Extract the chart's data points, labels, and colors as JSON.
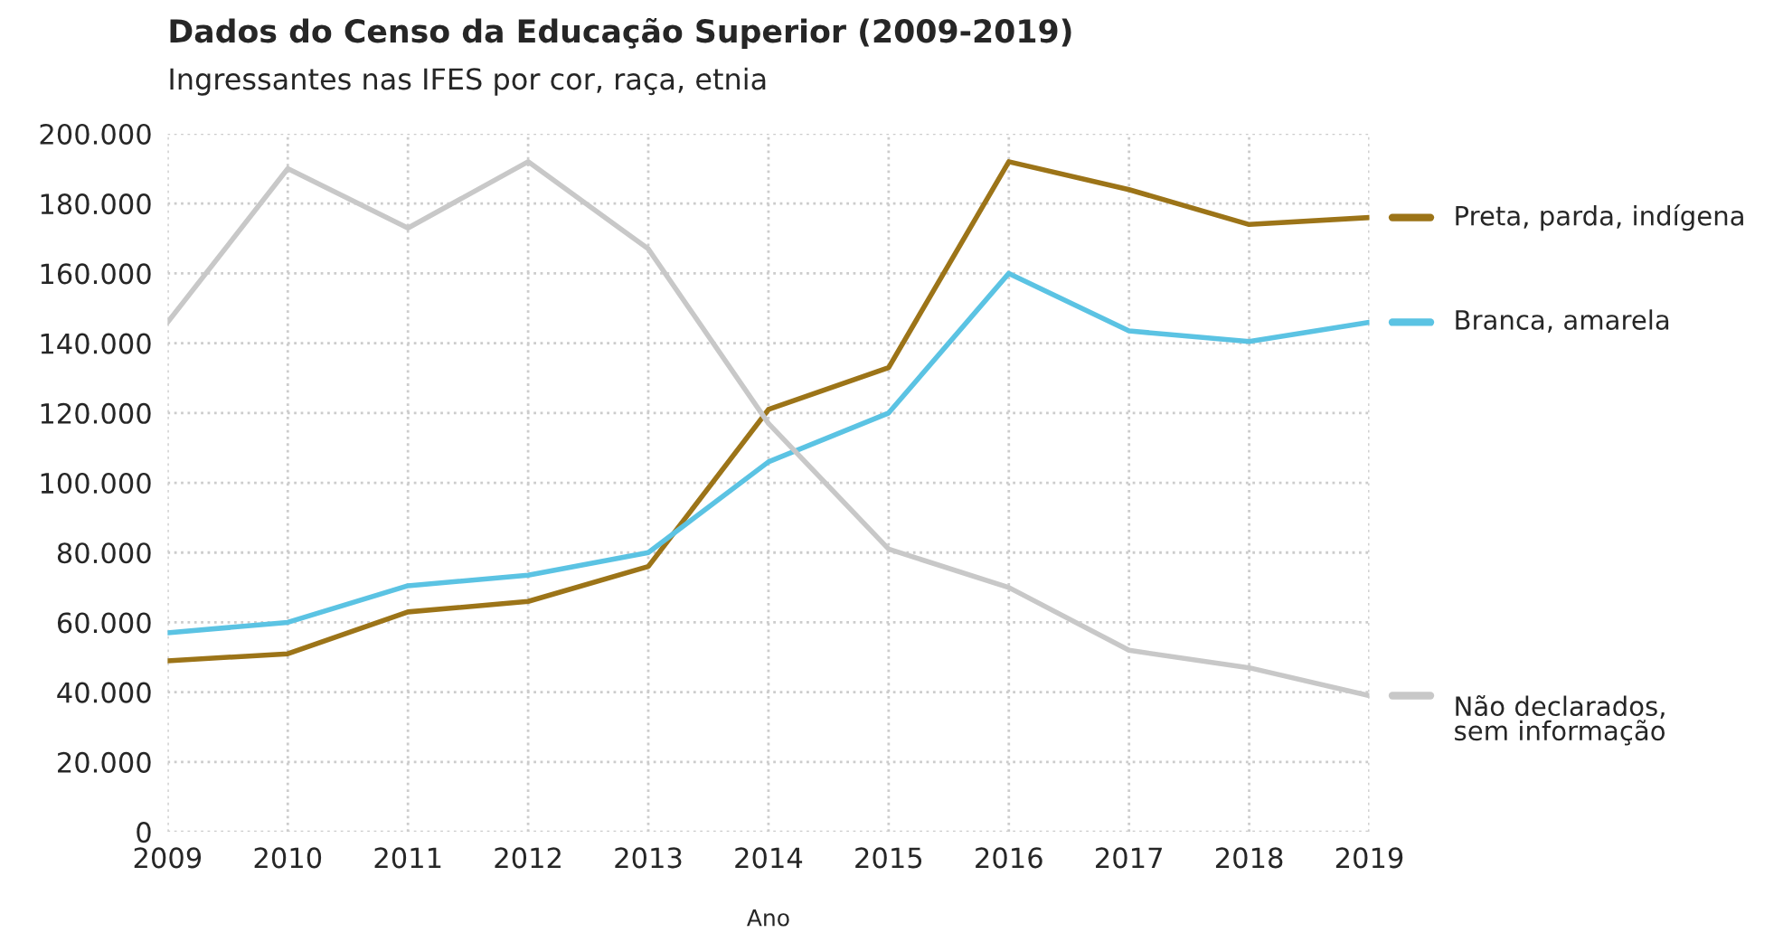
{
  "chart_data": {
    "type": "line",
    "title": "Dados do Censo da Educação Superior (2009-2019)",
    "subtitle": "Ingressantes nas IFES por cor, raça, etnia",
    "xlabel": "Ano",
    "x": [
      2009,
      2010,
      2011,
      2012,
      2013,
      2014,
      2015,
      2016,
      2017,
      2018,
      2019
    ],
    "series": [
      {
        "name": "Preta, parda, indígena",
        "color": "#9c7418",
        "values": [
          49000,
          51000,
          63000,
          66000,
          76000,
          121000,
          133000,
          192000,
          184000,
          174000,
          176000
        ]
      },
      {
        "name": "Branca, amarela",
        "color": "#5bc3e3",
        "values": [
          57000,
          60000,
          70500,
          73500,
          80000,
          106000,
          120000,
          160000,
          143500,
          140500,
          146000
        ]
      },
      {
        "name": "Não declarados,\nsem informação",
        "color": "#c8c8c8",
        "values": [
          146000,
          190000,
          173000,
          192000,
          167000,
          117000,
          81000,
          70000,
          52000,
          47000,
          39000
        ]
      }
    ],
    "xlim": [
      2009,
      2019
    ],
    "xticks": [
      2009,
      2010,
      2011,
      2012,
      2013,
      2014,
      2015,
      2016,
      2017,
      2018,
      2019
    ],
    "ylim": [
      0,
      200000
    ],
    "yticks": [
      {
        "value": 0,
        "label": "0"
      },
      {
        "value": 20000,
        "label": "20.000"
      },
      {
        "value": 40000,
        "label": "40.000"
      },
      {
        "value": 60000,
        "label": "60.000"
      },
      {
        "value": 80000,
        "label": "80.000"
      },
      {
        "value": 100000,
        "label": "100.000"
      },
      {
        "value": 120000,
        "label": "120.000"
      },
      {
        "value": 140000,
        "label": "140.000"
      },
      {
        "value": 160000,
        "label": "160.000"
      },
      {
        "value": 180000,
        "label": "180.000"
      },
      {
        "value": 200000,
        "label": "200.000"
      }
    ],
    "grid": true,
    "legend": "right",
    "marker": "none",
    "line_style": "solid"
  }
}
